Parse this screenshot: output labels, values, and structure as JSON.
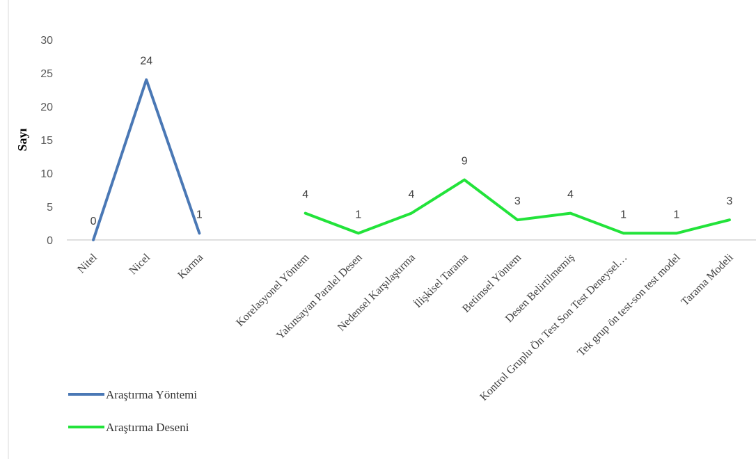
{
  "chart_data": {
    "type": "line",
    "ylabel": "Sayı",
    "ylim": [
      0,
      30
    ],
    "yticks": [
      0,
      5,
      10,
      15,
      20,
      25,
      30
    ],
    "grid": false,
    "legend_position": "bottom-left",
    "categories": [
      "Nitel",
      "Nicel",
      "Karma",
      "",
      "Korelasyonel Yöntem",
      "Yakınsayan Paralel Desen",
      "Nedensel Karşılaştırma",
      "İlişkisel Tarama",
      "Betimsel Yöntem",
      "Desen Belirtilmemiş",
      "Kontrol Gruplu Ön Test Son Test Deneysel…",
      "Tek grup ön test-son test model",
      "Tarama Modeli"
    ],
    "series": [
      {
        "name": "Araştırma Yöntemi",
        "color": "#4a78b5",
        "values": [
          0,
          24,
          1,
          null,
          null,
          null,
          null,
          null,
          null,
          null,
          null,
          null,
          null
        ],
        "labels": [
          "0",
          "24",
          "1",
          "",
          "",
          "",
          "",
          "",
          "",
          "",
          "",
          "",
          ""
        ]
      },
      {
        "name": "Araştırma Deseni",
        "color": "#22e33a",
        "values": [
          null,
          null,
          null,
          null,
          4,
          1,
          4,
          9,
          3,
          4,
          1,
          1,
          3
        ],
        "labels": [
          "",
          "",
          "",
          "",
          "4",
          "1",
          "4",
          "9",
          "3",
          "4",
          "1",
          "1",
          "3"
        ]
      }
    ]
  }
}
